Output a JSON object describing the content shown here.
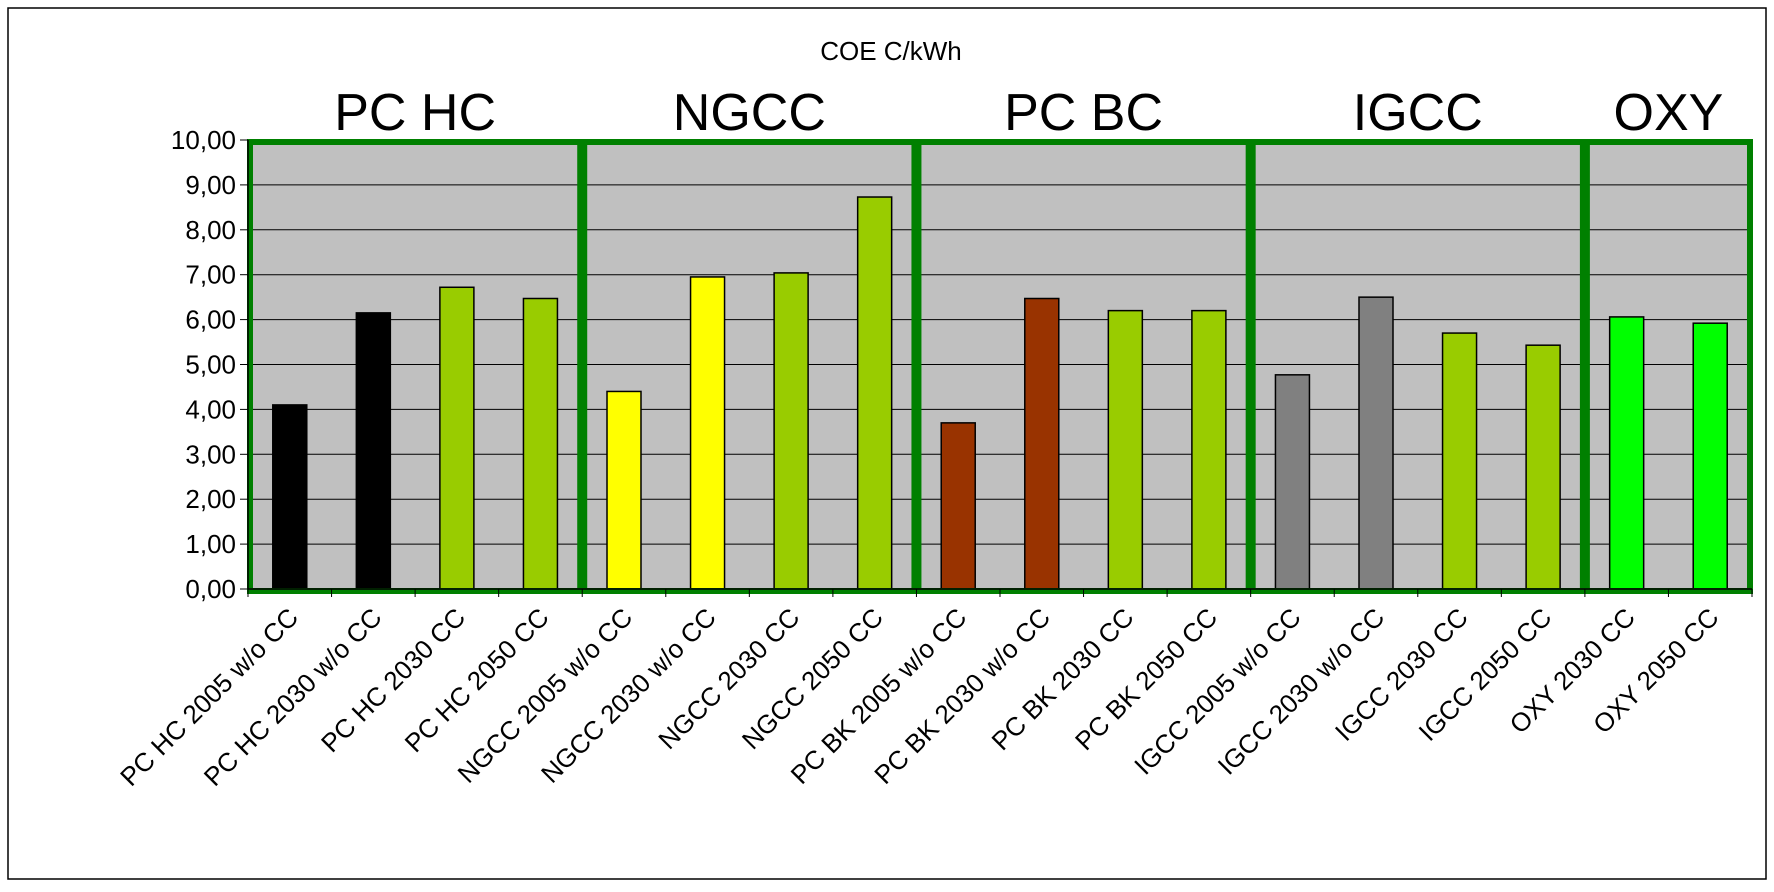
{
  "chart_data": {
    "type": "bar",
    "title": "COE C/kWh",
    "xlabel": "",
    "ylabel": "",
    "ylim": [
      0,
      10
    ],
    "yticks": [
      "0,00",
      "1,00",
      "2,00",
      "3,00",
      "4,00",
      "5,00",
      "6,00",
      "7,00",
      "8,00",
      "9,00",
      "10,00"
    ],
    "grid": true,
    "categories": [
      "PC HC 2005 w/o CC",
      "PC HC 2030 w/o CC",
      "PC HC 2030 CC",
      "PC HC 2050 CC",
      "NGCC 2005 w/o CC",
      "NGCC 2030 w/o CC",
      "NGCC 2030 CC",
      "NGCC 2050 CC",
      "PC BK 2005 w/o CC",
      "PC BK 2030 w/o CC",
      "PC BK 2030 CC",
      "PC BK 2050 CC",
      "IGCC 2005 w/o CC",
      "IGCC 2030 w/o CC",
      "IGCC 2030 CC",
      "IGCC 2050 CC",
      "OXY 2030 CC",
      "OXY 2050 CC"
    ],
    "values": [
      4.1,
      6.15,
      6.72,
      6.47,
      4.4,
      6.95,
      7.04,
      8.73,
      3.7,
      6.47,
      6.2,
      6.2,
      4.77,
      6.5,
      5.7,
      5.43,
      6.06,
      5.92
    ],
    "bar_colors": [
      "#000000",
      "#000000",
      "#99cc00",
      "#99cc00",
      "#ffff00",
      "#ffff00",
      "#99cc00",
      "#99cc00",
      "#993300",
      "#993300",
      "#99cc00",
      "#99cc00",
      "#808080",
      "#808080",
      "#99cc00",
      "#99cc00",
      "#00ff00",
      "#00ff00"
    ],
    "groups": [
      {
        "label": "PC HC",
        "start": 0,
        "end": 3
      },
      {
        "label": "NGCC",
        "start": 4,
        "end": 7
      },
      {
        "label": "PC BC",
        "start": 8,
        "end": 11
      },
      {
        "label": "IGCC",
        "start": 12,
        "end": 15
      },
      {
        "label": "OXY",
        "start": 16,
        "end": 17
      }
    ],
    "colors": {
      "plot_background": "#c0c0c0",
      "group_box": "#008000",
      "grid": "#000000"
    }
  }
}
